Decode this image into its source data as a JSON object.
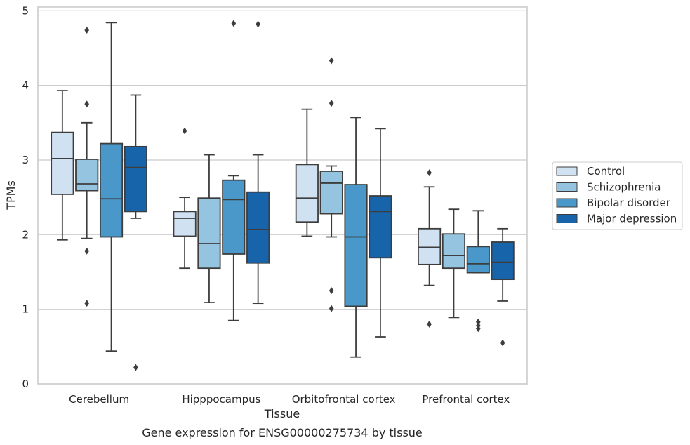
{
  "chart_data": {
    "type": "box",
    "xlabel": "Tissue",
    "ylabel": "TPMs",
    "caption": "Gene expression for ENSG00000275734 by tissue",
    "ylim": [
      0,
      5.05
    ],
    "yticks": [
      0,
      1,
      2,
      3,
      4,
      5
    ],
    "grid": "horizontal",
    "legend_position": "right",
    "categories": [
      "Cerebellum",
      "Hipppocampus",
      "Orbitofrontal cortex",
      "Prefrontal cortex"
    ],
    "series": [
      {
        "name": "Control",
        "color": "#d0e1f2",
        "boxes": [
          {
            "whislo": 1.93,
            "q1": 2.54,
            "med": 3.02,
            "q3": 3.37,
            "whishi": 3.93,
            "fliers": []
          },
          {
            "whislo": 1.55,
            "q1": 1.98,
            "med": 2.22,
            "q3": 2.31,
            "whishi": 2.5,
            "fliers": [
              3.39
            ]
          },
          {
            "whislo": 1.98,
            "q1": 2.17,
            "med": 2.49,
            "q3": 2.94,
            "whishi": 3.68,
            "fliers": []
          },
          {
            "whislo": 1.32,
            "q1": 1.6,
            "med": 1.83,
            "q3": 2.08,
            "whishi": 2.64,
            "fliers": [
              2.83,
              0.8
            ]
          }
        ]
      },
      {
        "name": "Schizophrenia",
        "color": "#94c4df",
        "boxes": [
          {
            "whislo": 1.95,
            "q1": 2.59,
            "med": 2.68,
            "q3": 3.01,
            "whishi": 3.5,
            "fliers": [
              4.74,
              3.75,
              1.78,
              1.08
            ]
          },
          {
            "whislo": 1.09,
            "q1": 1.55,
            "med": 1.88,
            "q3": 2.49,
            "whishi": 3.07,
            "fliers": []
          },
          {
            "whislo": 1.97,
            "q1": 2.28,
            "med": 2.69,
            "q3": 2.85,
            "whishi": 2.92,
            "fliers": [
              4.33,
              3.76,
              1.25,
              1.01
            ]
          },
          {
            "whislo": 0.89,
            "q1": 1.55,
            "med": 1.72,
            "q3": 2.01,
            "whishi": 2.34,
            "fliers": []
          }
        ]
      },
      {
        "name": "Bipolar disorder",
        "color": "#4a98c9",
        "boxes": [
          {
            "whislo": 0.44,
            "q1": 1.97,
            "med": 2.48,
            "q3": 3.22,
            "whishi": 4.84,
            "fliers": []
          },
          {
            "whislo": 0.85,
            "q1": 1.74,
            "med": 2.47,
            "q3": 2.73,
            "whishi": 2.79,
            "fliers": [
              4.83
            ]
          },
          {
            "whislo": 0.36,
            "q1": 1.04,
            "med": 1.97,
            "q3": 2.67,
            "whishi": 3.57,
            "fliers": []
          },
          {
            "whislo": 1.49,
            "q1": 1.49,
            "med": 1.61,
            "q3": 1.84,
            "whishi": 2.32,
            "fliers": [
              0.83,
              0.78,
              0.74
            ]
          }
        ]
      },
      {
        "name": "Major depression",
        "color": "#1764ab",
        "boxes": [
          {
            "whislo": 2.22,
            "q1": 2.31,
            "med": 2.9,
            "q3": 3.18,
            "whishi": 3.87,
            "fliers": [
              0.22
            ]
          },
          {
            "whislo": 1.08,
            "q1": 1.62,
            "med": 2.07,
            "q3": 2.57,
            "whishi": 3.07,
            "fliers": [
              4.82
            ]
          },
          {
            "whislo": 0.63,
            "q1": 1.69,
            "med": 2.31,
            "q3": 2.52,
            "whishi": 3.42,
            "fliers": []
          },
          {
            "whislo": 1.11,
            "q1": 1.4,
            "med": 1.63,
            "q3": 1.9,
            "whishi": 2.08,
            "fliers": [
              0.55
            ]
          }
        ]
      }
    ]
  }
}
